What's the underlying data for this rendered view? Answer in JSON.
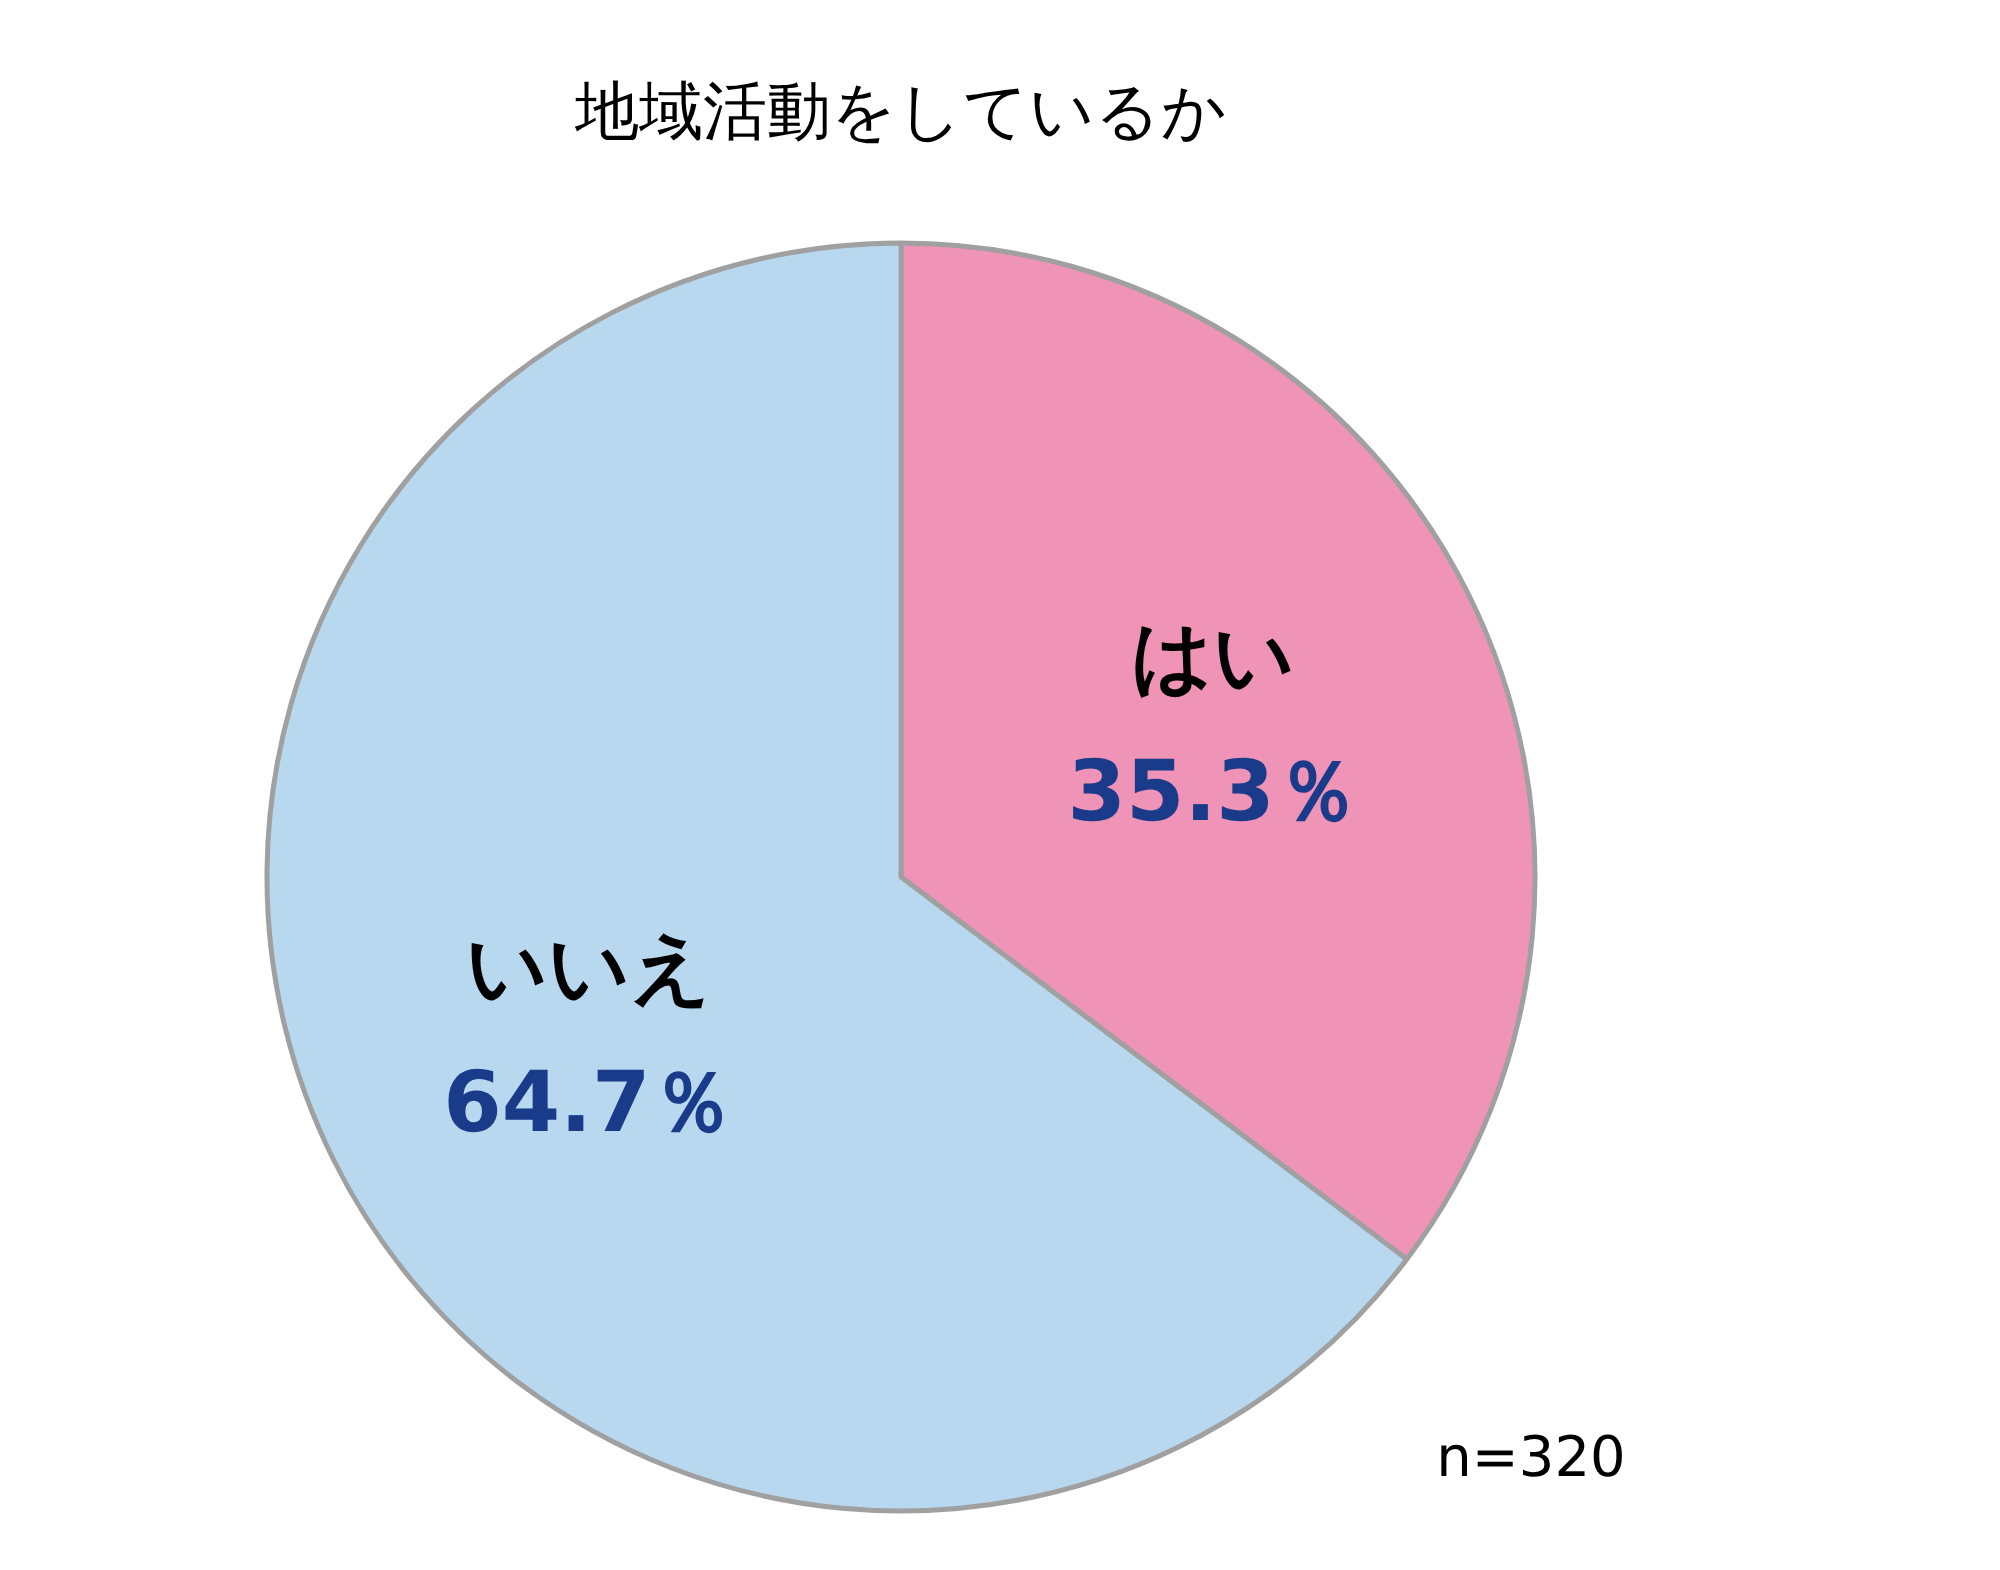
{
  "chart_data": {
    "type": "pie",
    "title": "地域活動をしているか",
    "categories": [
      "はい",
      "いいえ"
    ],
    "values": [
      35.3,
      64.7
    ],
    "colors": [
      "#ef93b7",
      "#b8d8f0"
    ],
    "value_labels": [
      "35.3％",
      "64.7％"
    ],
    "annotations": [
      "n=320"
    ]
  }
}
